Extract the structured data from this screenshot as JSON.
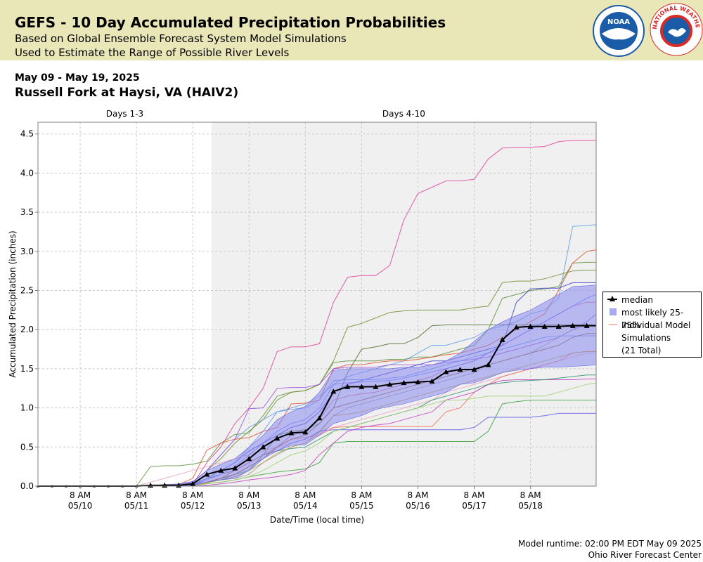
{
  "header": {
    "title": "GEFS - 10 Day Accumulated Precipitation Probabilities",
    "subtitle1": "Based on Global Ensemble Forecast System Model Simulations",
    "subtitle2": "Used to Estimate the Range of Possible River Levels",
    "noaa_logo_text": "NOAA",
    "nws_logo_text": "NATIONAL WEATHER SERVICE",
    "colors": {
      "band": "#e9e6b8",
      "noaa_blue": "#1a5ca8",
      "nws_red": "#d72b27"
    }
  },
  "date_range": "May 09 - May 19, 2025",
  "location": "Russell Fork at Haysi, VA (HAIV2)",
  "footer": {
    "runtime": "Model runtime: 02:00 PM EDT May 09 2025",
    "center": "Ohio River Forecast Center"
  },
  "legend": {
    "median": "median",
    "band": "most likely 25-75%",
    "individual": "Individual Model Simulations",
    "total": "(21 Total)"
  },
  "chart_data": {
    "type": "line",
    "xlabel": "Date/Time (local time)",
    "ylabel": "Accumulated Precipitation (inches)",
    "ylim": [
      0,
      4.65
    ],
    "yticks": [
      "0.0",
      "0.5",
      "1.0",
      "1.5",
      "2.0",
      "2.5",
      "3.0",
      "3.5",
      "4.0",
      "4.5"
    ],
    "x_range_hours": [
      0,
      238
    ],
    "x_ticks": [
      {
        "h": 18,
        "l1": "8 AM",
        "l2": "05/10"
      },
      {
        "h": 42,
        "l1": "8 AM",
        "l2": "05/11"
      },
      {
        "h": 66,
        "l1": "8 AM",
        "l2": "05/12"
      },
      {
        "h": 90,
        "l1": "8 AM",
        "l2": "05/13"
      },
      {
        "h": 114,
        "l1": "8 AM",
        "l2": "05/14"
      },
      {
        "h": 138,
        "l1": "8 AM",
        "l2": "05/15"
      },
      {
        "h": 162,
        "l1": "8 AM",
        "l2": "05/16"
      },
      {
        "h": 186,
        "l1": "8 AM",
        "l2": "05/17"
      },
      {
        "h": 210,
        "l1": "8 AM",
        "l2": "05/18"
      }
    ],
    "periods": [
      {
        "label": "Days 1-3",
        "start": 0,
        "end": 74
      },
      {
        "label": "Days 4-10",
        "start": 74,
        "end": 238
      }
    ],
    "period_shading": "#f0f0f0",
    "x": [
      0,
      6,
      12,
      18,
      24,
      30,
      36,
      42,
      48,
      54,
      60,
      66,
      72,
      78,
      84,
      90,
      96,
      102,
      108,
      114,
      120,
      126,
      132,
      138,
      144,
      150,
      156,
      162,
      168,
      174,
      180,
      186,
      192,
      198,
      204,
      210,
      216,
      222,
      228,
      234,
      240
    ],
    "median": [
      0,
      0,
      0,
      0,
      0,
      0,
      0,
      0,
      0.01,
      0.01,
      0.01,
      0.03,
      0.15,
      0.2,
      0.23,
      0.35,
      0.5,
      0.61,
      0.68,
      0.69,
      0.87,
      1.21,
      1.27,
      1.27,
      1.27,
      1.3,
      1.32,
      1.33,
      1.34,
      1.46,
      1.49,
      1.49,
      1.55,
      1.87,
      2.03,
      2.04,
      2.04,
      2.04,
      2.05,
      2.05,
      2.05
    ],
    "p25": [
      0,
      0,
      0,
      0,
      0,
      0,
      0,
      0,
      0,
      0,
      0,
      0.01,
      0.05,
      0.08,
      0.1,
      0.2,
      0.35,
      0.45,
      0.52,
      0.53,
      0.65,
      0.8,
      0.85,
      0.9,
      0.98,
      1.02,
      1.05,
      1.1,
      1.15,
      1.2,
      1.3,
      1.32,
      1.38,
      1.45,
      1.48,
      1.5,
      1.52,
      1.52,
      1.53,
      1.54,
      1.55
    ],
    "p75": [
      0,
      0,
      0,
      0,
      0,
      0,
      0,
      0,
      0.01,
      0.02,
      0.03,
      0.06,
      0.2,
      0.28,
      0.35,
      0.5,
      0.65,
      0.85,
      0.95,
      1.02,
      1.2,
      1.48,
      1.5,
      1.5,
      1.5,
      1.5,
      1.52,
      1.52,
      1.55,
      1.6,
      1.7,
      1.85,
      2.0,
      2.1,
      2.18,
      2.25,
      2.35,
      2.45,
      2.55,
      2.56,
      2.57
    ],
    "series": [
      {
        "color": "#e0409a",
        "values": [
          0,
          0,
          0,
          0,
          0,
          0,
          0,
          0,
          0,
          0,
          0,
          0.02,
          0.3,
          0.5,
          0.8,
          1.0,
          1.25,
          1.72,
          1.78,
          1.78,
          1.82,
          2.35,
          2.67,
          2.69,
          2.69,
          2.82,
          3.4,
          3.74,
          3.82,
          3.9,
          3.9,
          3.92,
          4.18,
          4.32,
          4.33,
          4.33,
          4.34,
          4.4,
          4.42,
          4.42,
          4.42
        ]
      },
      {
        "color": "#5b8f35",
        "values": [
          0,
          0,
          0,
          0,
          0,
          0,
          0,
          0,
          0.25,
          0.26,
          0.26,
          0.28,
          0.32,
          0.55,
          0.66,
          0.68,
          0.9,
          1.15,
          1.2,
          1.22,
          1.3,
          1.58,
          1.6,
          1.6,
          1.6,
          1.62,
          1.62,
          1.65,
          1.65,
          1.7,
          1.75,
          1.8,
          2.0,
          2.4,
          2.45,
          2.5,
          2.52,
          2.55,
          2.85,
          2.86,
          2.86
        ]
      },
      {
        "color": "#6e8b2c",
        "values": [
          0,
          0,
          0,
          0,
          0,
          0,
          0,
          0,
          0,
          0.02,
          0.02,
          0.05,
          0.2,
          0.35,
          0.55,
          0.7,
          0.85,
          1.1,
          1.2,
          1.22,
          1.3,
          1.6,
          2.03,
          2.08,
          2.15,
          2.22,
          2.24,
          2.25,
          2.25,
          2.25,
          2.25,
          2.28,
          2.3,
          2.6,
          2.62,
          2.62,
          2.65,
          2.7,
          2.75,
          2.76,
          2.76
        ]
      },
      {
        "color": "#5f9ee8",
        "values": [
          0,
          0,
          0,
          0,
          0,
          0,
          0,
          0,
          0,
          0.01,
          0.02,
          0.05,
          0.2,
          0.4,
          0.6,
          0.75,
          0.85,
          0.95,
          1.0,
          1.05,
          1.15,
          1.3,
          1.4,
          1.45,
          1.5,
          1.55,
          1.6,
          1.7,
          1.8,
          1.8,
          1.85,
          1.9,
          2.0,
          2.05,
          2.1,
          2.2,
          2.25,
          2.4,
          3.32,
          3.33,
          3.34
        ]
      },
      {
        "color": "#e05030",
        "values": [
          0,
          0,
          0,
          0,
          0,
          0,
          0,
          0,
          0,
          0,
          0.02,
          0.1,
          0.46,
          0.55,
          0.6,
          0.62,
          0.7,
          0.75,
          1.05,
          1.06,
          1.1,
          1.5,
          1.55,
          1.55,
          1.58,
          1.6,
          1.6,
          1.62,
          1.65,
          1.68,
          1.7,
          1.75,
          1.8,
          1.9,
          2.0,
          2.1,
          2.2,
          2.5,
          2.85,
          3.0,
          3.02
        ]
      },
      {
        "color": "#9a50e0",
        "values": [
          0,
          0,
          0,
          0,
          0,
          0,
          0,
          0,
          0,
          0,
          0.01,
          0.05,
          0.2,
          0.4,
          0.6,
          0.99,
          1.0,
          1.25,
          1.26,
          1.26,
          1.3,
          1.5,
          1.52,
          1.52,
          1.52,
          1.55,
          1.55,
          1.55,
          1.55,
          1.58,
          1.6,
          1.62,
          1.65,
          1.7,
          1.75,
          1.8,
          1.85,
          1.9,
          2.0,
          2.1,
          2.2
        ]
      },
      {
        "color": "#3c3cd0",
        "values": [
          0,
          0,
          0,
          0,
          0,
          0,
          0,
          0,
          0,
          0,
          0,
          0.02,
          0.1,
          0.2,
          0.3,
          0.45,
          0.55,
          0.65,
          0.75,
          0.8,
          0.95,
          1.2,
          1.3,
          1.35,
          1.4,
          1.45,
          1.5,
          1.55,
          1.6,
          1.6,
          1.65,
          1.7,
          1.75,
          1.8,
          2.35,
          2.52,
          2.53,
          2.53,
          2.6,
          2.6,
          2.6
        ]
      },
      {
        "color": "#4a6a2a",
        "values": [
          0,
          0,
          0,
          0,
          0,
          0,
          0,
          0,
          0,
          0,
          0,
          0.02,
          0.1,
          0.15,
          0.2,
          0.3,
          0.4,
          0.65,
          0.7,
          0.72,
          0.8,
          1.0,
          1.45,
          1.75,
          1.78,
          1.82,
          1.82,
          1.9,
          2.05,
          2.06,
          2.06,
          2.06,
          2.06,
          2.06,
          2.06,
          2.06,
          2.06,
          2.06,
          2.06,
          2.06,
          2.06
        ]
      },
      {
        "color": "#9a9a9a",
        "values": [
          0,
          0,
          0,
          0,
          0,
          0,
          0,
          0,
          0,
          0,
          0,
          0.01,
          0.05,
          0.08,
          0.1,
          0.15,
          0.3,
          0.4,
          0.5,
          0.55,
          0.7,
          0.9,
          1.0,
          1.05,
          1.1,
          1.15,
          1.2,
          1.25,
          1.3,
          1.35,
          1.4,
          1.45,
          1.55,
          1.6,
          1.65,
          1.7,
          1.8,
          1.9,
          2.0,
          2.05,
          2.05
        ]
      },
      {
        "color": "#e8a0c0",
        "values": [
          0,
          0,
          0,
          0,
          0,
          0,
          0,
          0,
          0.05,
          0.1,
          0.15,
          0.2,
          0.25,
          0.3,
          0.35,
          0.4,
          0.45,
          0.5,
          0.55,
          0.6,
          0.7,
          0.75,
          0.8,
          0.85,
          0.9,
          0.95,
          1.0,
          1.05,
          1.1,
          1.2,
          1.25,
          1.3,
          1.35,
          1.4,
          1.45,
          1.5,
          1.55,
          1.6,
          1.65,
          1.7,
          1.7
        ]
      },
      {
        "color": "#39a039",
        "values": [
          0,
          0,
          0,
          0,
          0,
          0,
          0,
          0,
          0,
          0,
          0,
          0.01,
          0.03,
          0.05,
          0.08,
          0.12,
          0.15,
          0.18,
          0.2,
          0.22,
          0.3,
          0.55,
          0.57,
          0.57,
          0.57,
          0.57,
          0.57,
          0.57,
          0.57,
          0.57,
          0.57,
          0.57,
          0.7,
          1.05,
          1.08,
          1.1,
          1.1,
          1.1,
          1.1,
          1.1,
          1.1
        ]
      },
      {
        "color": "#5a5ae8",
        "values": [
          0,
          0,
          0,
          0,
          0,
          0,
          0,
          0,
          0,
          0,
          0,
          0.02,
          0.05,
          0.1,
          0.2,
          0.3,
          0.4,
          0.45,
          0.55,
          0.6,
          0.7,
          0.72,
          0.72,
          0.72,
          0.72,
          0.72,
          0.72,
          0.72,
          0.72,
          0.72,
          0.72,
          0.75,
          0.88,
          0.88,
          0.88,
          0.88,
          0.9,
          0.93,
          0.93,
          0.93,
          0.93
        ]
      },
      {
        "color": "#f07060",
        "values": [
          0,
          0,
          0,
          0,
          0,
          0,
          0,
          0,
          0,
          0,
          0,
          0.01,
          0.05,
          0.1,
          0.2,
          0.3,
          0.4,
          0.5,
          0.6,
          0.62,
          0.65,
          0.75,
          0.76,
          0.76,
          0.76,
          0.76,
          0.76,
          0.76,
          0.76,
          0.95,
          1.0,
          1.2,
          1.3,
          1.4,
          1.45,
          1.5,
          1.55,
          1.6,
          1.7,
          1.72,
          1.72
        ]
      },
      {
        "color": "#c040c0",
        "values": [
          0,
          0,
          0,
          0,
          0,
          0,
          0,
          0,
          0,
          0,
          0,
          0,
          0.01,
          0.03,
          0.05,
          0.08,
          0.1,
          0.12,
          0.15,
          0.2,
          0.4,
          0.55,
          0.7,
          0.75,
          0.78,
          0.8,
          0.85,
          0.9,
          0.95,
          1.1,
          1.15,
          1.2,
          1.3,
          1.35,
          1.36,
          1.36,
          1.36,
          1.36,
          1.36,
          1.37,
          1.37
        ]
      },
      {
        "color": "#6090f0",
        "values": [
          0,
          0,
          0,
          0,
          0,
          0,
          0,
          0,
          0,
          0,
          0,
          0.01,
          0.1,
          0.2,
          0.3,
          0.5,
          0.7,
          0.95,
          0.98,
          1.0,
          1.1,
          1.35,
          1.36,
          1.36,
          1.36,
          1.38,
          1.4,
          1.45,
          1.5,
          1.55,
          1.6,
          1.65,
          1.7,
          1.75,
          1.8,
          1.85,
          1.9,
          1.92,
          1.92,
          1.92,
          1.92
        ]
      },
      {
        "color": "#2e8f6e",
        "values": [
          0,
          0,
          0,
          0,
          0,
          0,
          0,
          0,
          0,
          0,
          0,
          0.01,
          0.05,
          0.08,
          0.15,
          0.2,
          0.4,
          0.45,
          0.48,
          0.5,
          0.6,
          0.7,
          0.75,
          0.8,
          0.85,
          0.9,
          0.95,
          1.0,
          1.1,
          1.15,
          1.2,
          1.25,
          1.3,
          1.32,
          1.34,
          1.35,
          1.36,
          1.38,
          1.4,
          1.42,
          1.42
        ]
      },
      {
        "color": "#d06090",
        "values": [
          0,
          0,
          0,
          0,
          0,
          0,
          0,
          0,
          0,
          0,
          0,
          0.01,
          0.05,
          0.1,
          0.15,
          0.25,
          0.35,
          0.5,
          0.65,
          0.7,
          0.85,
          1.1,
          1.15,
          1.18,
          1.2,
          1.25,
          1.3,
          1.35,
          1.4,
          1.5,
          1.55,
          1.6,
          1.7,
          1.8,
          1.9,
          2.0,
          2.1,
          2.2,
          2.3,
          2.35,
          2.35
        ]
      },
      {
        "color": "#8a5a2a",
        "values": [
          0,
          0,
          0,
          0,
          0,
          0,
          0,
          0,
          0,
          0,
          0,
          0.01,
          0.05,
          0.1,
          0.15,
          0.25,
          0.35,
          0.5,
          0.6,
          0.65,
          0.8,
          1.0,
          1.05,
          1.1,
          1.15,
          1.2,
          1.25,
          1.3,
          1.35,
          1.4,
          1.45,
          1.5,
          1.55,
          1.6,
          1.65,
          1.7,
          1.75,
          1.8,
          1.9,
          1.95,
          1.95
        ]
      },
      {
        "color": "#a0d070",
        "values": [
          0,
          0,
          0,
          0,
          0,
          0,
          0,
          0,
          0,
          0,
          0,
          0.01,
          0.03,
          0.05,
          0.08,
          0.12,
          0.2,
          0.3,
          0.4,
          0.45,
          0.55,
          0.7,
          0.75,
          0.8,
          0.85,
          0.9,
          0.95,
          1.0,
          1.05,
          1.1,
          1.1,
          1.12,
          1.15,
          1.15,
          1.15,
          1.15,
          1.15,
          1.2,
          1.25,
          1.3,
          1.32
        ]
      },
      {
        "color": "#7070ff",
        "values": [
          0,
          0,
          0,
          0,
          0,
          0,
          0,
          0,
          0,
          0,
          0,
          0.01,
          0.08,
          0.15,
          0.25,
          0.4,
          0.55,
          0.7,
          0.8,
          0.85,
          1.0,
          1.3,
          1.32,
          1.33,
          1.34,
          1.35,
          1.38,
          1.42,
          1.46,
          1.5,
          1.55,
          1.6,
          1.7,
          1.8,
          1.9,
          2.0,
          2.1,
          2.2,
          2.3,
          2.4,
          2.45
        ]
      },
      {
        "color": "#c0a040",
        "values": [
          0,
          0,
          0,
          0,
          0,
          0,
          0,
          0,
          0,
          0,
          0,
          0.01,
          0.04,
          0.08,
          0.12,
          0.2,
          0.3,
          0.42,
          0.5,
          0.55,
          0.68,
          0.9,
          0.92,
          0.95,
          1.0,
          1.05,
          1.1,
          1.15,
          1.2,
          1.25,
          1.3,
          1.35,
          1.4,
          1.45,
          1.5,
          1.55,
          1.6,
          1.65,
          1.7,
          1.72,
          1.72
        ]
      }
    ],
    "colors": {
      "band": "#8a8af0",
      "median": "#000000",
      "grid": "#c8c8c8"
    }
  }
}
